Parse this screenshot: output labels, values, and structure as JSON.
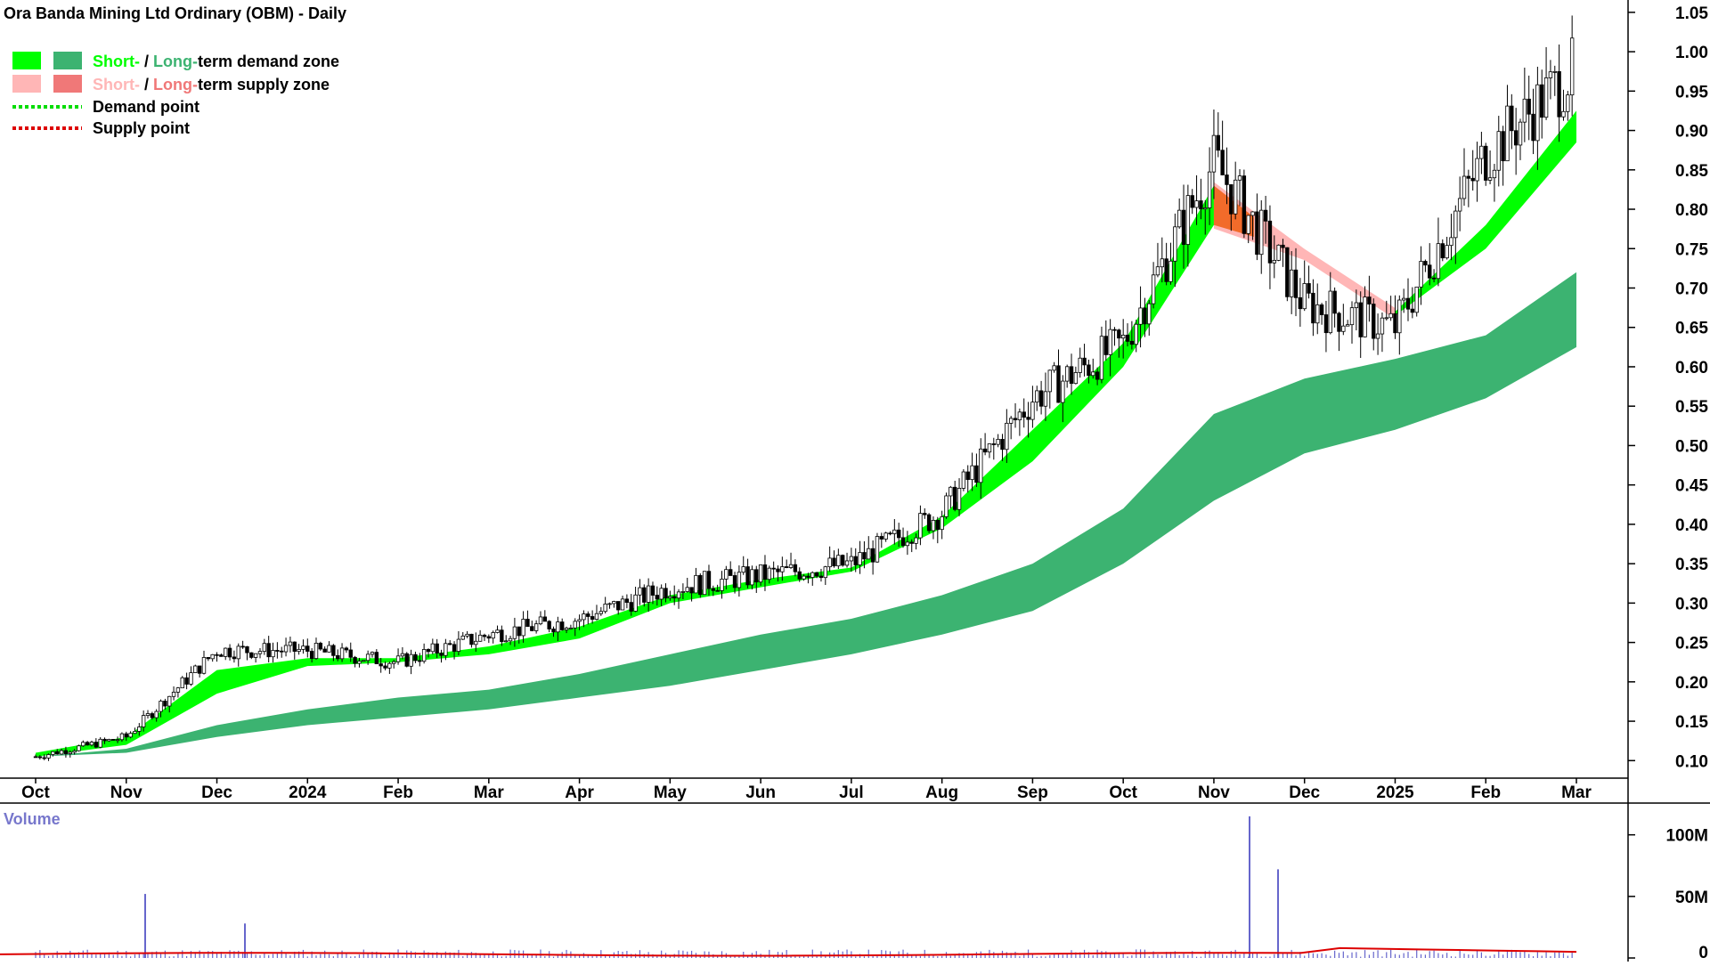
{
  "title": "Ora Banda Mining Ltd Ordinary (OBM) - Daily",
  "legend": {
    "demand_zone": {
      "short": "Short-",
      "sep": " / ",
      "long": "Long-",
      "rest": "term demand zone"
    },
    "supply_zone": {
      "short": "Short-",
      "sep": " / ",
      "long": "Long-",
      "rest": "term supply zone"
    },
    "demand_point": "Demand point",
    "supply_point": "Supply point"
  },
  "volume_label": "Volume",
  "colors": {
    "short_demand": "#00ff00",
    "long_demand": "#3cb371",
    "short_supply": "#ffb6b6",
    "long_supply": "#f07878",
    "short_supply_dark": "#f26b2a",
    "demand_point": "#00dd00",
    "supply_point": "#dd0000",
    "volume_bar": "#6666cc",
    "volume_avg": "#dd0000",
    "candle": "#000000"
  },
  "chart_data": {
    "type": "candlestick",
    "title": "Ora Banda Mining Ltd Ordinary (OBM) - Daily",
    "price_axis": {
      "ticks": [
        "0.10",
        "0.15",
        "0.20",
        "0.25",
        "0.30",
        "0.35",
        "0.40",
        "0.45",
        "0.50",
        "0.55",
        "0.60",
        "0.65",
        "0.70",
        "0.75",
        "0.80",
        "0.85",
        "0.90",
        "0.95",
        "1.00",
        "1.05"
      ],
      "range": [
        0.08,
        1.06
      ]
    },
    "time_axis": {
      "labels": [
        "Oct",
        "Nov",
        "Dec",
        "2024",
        "Feb",
        "Mar",
        "Apr",
        "May",
        "Jun",
        "Jul",
        "Aug",
        "Sep",
        "Oct",
        "Nov",
        "Dec",
        "2025",
        "Feb",
        "Mar"
      ]
    },
    "close_anchors": [
      {
        "month": "Oct",
        "close": 0.105
      },
      {
        "month": "Nov",
        "close": 0.13
      },
      {
        "month": "Dec",
        "close": 0.24
      },
      {
        "month": "2024",
        "close": 0.24
      },
      {
        "month": "Feb",
        "close": 0.225
      },
      {
        "month": "Mar",
        "close": 0.26
      },
      {
        "month": "Apr",
        "close": 0.28
      },
      {
        "month": "May",
        "close": 0.32
      },
      {
        "month": "Jun",
        "close": 0.335
      },
      {
        "month": "Jul",
        "close": 0.35
      },
      {
        "month": "Aug",
        "close": 0.415
      },
      {
        "month": "Sep",
        "close": 0.56
      },
      {
        "month": "Oct",
        "close": 0.63
      },
      {
        "month": "Nov",
        "close": 0.86
      },
      {
        "month": "Dec",
        "close": 0.68
      },
      {
        "month": "2025",
        "close": 0.65
      },
      {
        "month": "Feb",
        "close": 0.87
      },
      {
        "month": "Mar",
        "close": 0.98
      }
    ],
    "short_term_zone": [
      {
        "month": "Oct",
        "upper": 0.11,
        "lower": 0.105
      },
      {
        "month": "Nov",
        "upper": 0.13,
        "lower": 0.12
      },
      {
        "month": "Dec",
        "upper": 0.215,
        "lower": 0.185
      },
      {
        "month": "2024",
        "upper": 0.23,
        "lower": 0.22
      },
      {
        "month": "Feb",
        "upper": 0.23,
        "lower": 0.225
      },
      {
        "month": "Mar",
        "upper": 0.245,
        "lower": 0.235
      },
      {
        "month": "Apr",
        "upper": 0.27,
        "lower": 0.255
      },
      {
        "month": "May",
        "upper": 0.31,
        "lower": 0.3
      },
      {
        "month": "Jun",
        "upper": 0.33,
        "lower": 0.32
      },
      {
        "month": "Jul",
        "upper": 0.345,
        "lower": 0.34
      },
      {
        "month": "Aug",
        "upper": 0.41,
        "lower": 0.395
      },
      {
        "month": "Sep",
        "upper": 0.52,
        "lower": 0.48
      },
      {
        "month": "Oct",
        "upper": 0.63,
        "lower": 0.6
      },
      {
        "month": "Nov",
        "upper": 0.83,
        "lower": 0.78
      },
      {
        "month": "Dec",
        "upper": 0.745,
        "lower": 0.74
      },
      {
        "month": "2025",
        "upper": 0.67,
        "lower": 0.665
      },
      {
        "month": "Feb",
        "upper": 0.78,
        "lower": 0.75
      },
      {
        "month": "Mar",
        "upper": 0.925,
        "lower": 0.885
      }
    ],
    "long_term_zone": [
      {
        "month": "Oct",
        "upper": 0.105,
        "lower": 0.105
      },
      {
        "month": "Nov",
        "upper": 0.115,
        "lower": 0.11
      },
      {
        "month": "Dec",
        "upper": 0.145,
        "lower": 0.13
      },
      {
        "month": "2024",
        "upper": 0.165,
        "lower": 0.145
      },
      {
        "month": "Feb",
        "upper": 0.18,
        "lower": 0.155
      },
      {
        "month": "Mar",
        "upper": 0.19,
        "lower": 0.165
      },
      {
        "month": "Apr",
        "upper": 0.21,
        "lower": 0.18
      },
      {
        "month": "May",
        "upper": 0.235,
        "lower": 0.195
      },
      {
        "month": "Jun",
        "upper": 0.26,
        "lower": 0.215
      },
      {
        "month": "Jul",
        "upper": 0.28,
        "lower": 0.235
      },
      {
        "month": "Aug",
        "upper": 0.31,
        "lower": 0.26
      },
      {
        "month": "Sep",
        "upper": 0.35,
        "lower": 0.29
      },
      {
        "month": "Oct",
        "upper": 0.42,
        "lower": 0.35
      },
      {
        "month": "Nov",
        "upper": 0.54,
        "lower": 0.43
      },
      {
        "month": "Dec",
        "upper": 0.585,
        "lower": 0.49
      },
      {
        "month": "2025",
        "upper": 0.61,
        "lower": 0.52
      },
      {
        "month": "Feb",
        "upper": 0.64,
        "lower": 0.56
      },
      {
        "month": "Mar",
        "upper": 0.72,
        "lower": 0.625
      }
    ],
    "volume_axis": {
      "ticks": [
        "0",
        "50M",
        "100M"
      ],
      "range": [
        0,
        120
      ]
    },
    "volume_spikes_millions": [
      {
        "month": "Nov",
        "value": 52
      },
      {
        "month": "2024",
        "value": 28
      },
      {
        "month": "Nov",
        "value": 115
      },
      {
        "month": "Nov",
        "value": 72
      }
    ]
  }
}
